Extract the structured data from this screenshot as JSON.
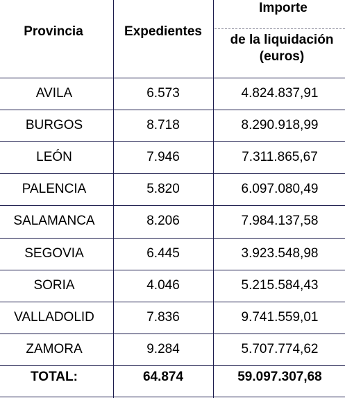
{
  "table": {
    "header": {
      "provincia": "Provincia",
      "expedientes": "Expedientes",
      "importe": "Importe",
      "importe_sub": [
        "de la liquidación",
        "(euros)"
      ]
    },
    "rows": [
      [
        "AVILA",
        "6.573",
        "4.824.837,91"
      ],
      [
        "BURGOS",
        "8.718",
        "8.290.918,99"
      ],
      [
        "LEÓN",
        "7.946",
        "7.311.865,67"
      ],
      [
        "PALENCIA",
        "5.820",
        "6.097.080,49"
      ],
      [
        "SALAMANCA",
        "8.206",
        "7.984.137,58"
      ],
      [
        "SEGOVIA",
        "6.445",
        "3.923.548,98"
      ],
      [
        "SORIA",
        "4.046",
        "5.215.584,43"
      ],
      [
        "VALLADOLID",
        "7.836",
        "9.741.559,01"
      ],
      [
        "ZAMORA",
        "9.284",
        "5.707.774,62"
      ]
    ],
    "total": [
      "TOTAL:",
      "64.874",
      "59.097.307,68"
    ]
  }
}
